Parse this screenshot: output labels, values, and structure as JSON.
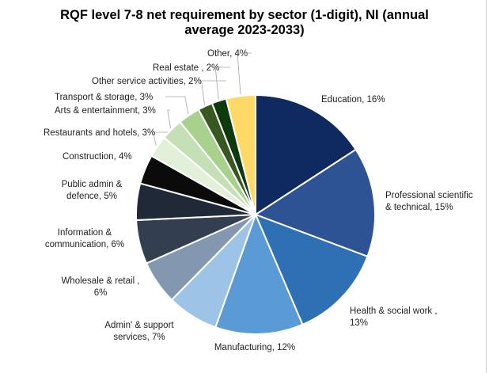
{
  "chart_data": {
    "type": "pie",
    "title": "RQF level 7-8 net requirement by sector (1-digit), NI (annual\naverage 2023-2033)",
    "slices": [
      {
        "label": "Education, 16%",
        "value": 16,
        "color": "#0f2a5e"
      },
      {
        "label": "Professional scientific\n& technical, 15%",
        "value": 15,
        "color": "#2e5395"
      },
      {
        "label": "Health & social work ,\n13%",
        "value": 13,
        "color": "#2f6fb3"
      },
      {
        "label": "Manufacturing, 12%",
        "value": 12,
        "color": "#5b9bd5"
      },
      {
        "label": "Admin' & support\nservices, 7%",
        "value": 7,
        "color": "#9dc3e6"
      },
      {
        "label": "Wholesale & retail ,\n6%",
        "value": 6,
        "color": "#8497b0"
      },
      {
        "label": "Information &\ncommunication, 6%",
        "value": 6,
        "color": "#333f50"
      },
      {
        "label": "Public admin &\ndefence, 5%",
        "value": 5,
        "color": "#1f2937"
      },
      {
        "label": "Construction, 4%",
        "value": 4,
        "color": "#0b0b0b"
      },
      {
        "label": "Restaurants and hotels, 3%",
        "value": 3,
        "color": "#e2f0d9"
      },
      {
        "label": "Arts & entertainment, 3%",
        "value": 3,
        "color": "#c5e0b4"
      },
      {
        "label": "Transport & storage, 3%",
        "value": 3,
        "color": "#a9d18e"
      },
      {
        "label": "Other service activities, 2%",
        "value": 2,
        "color": "#385723"
      },
      {
        "label": "Real estate , 2%",
        "value": 2,
        "color": "#0d3b0d"
      },
      {
        "label": "Other, 4%",
        "value": 4,
        "color": "#ffd966"
      }
    ]
  }
}
